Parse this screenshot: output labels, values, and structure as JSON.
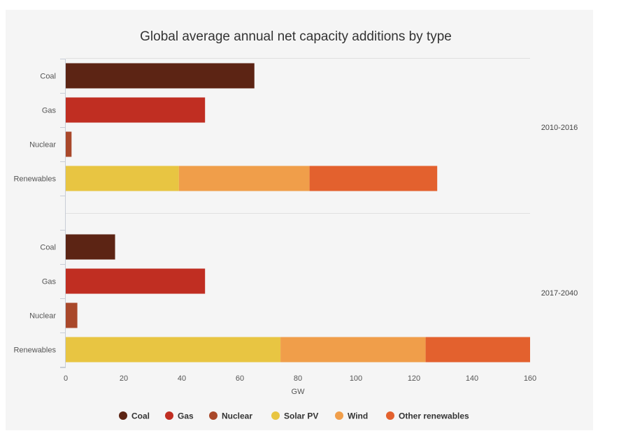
{
  "chart_data": {
    "type": "bar",
    "orientation": "horizontal",
    "stacked": true,
    "title": "Global average annual net capacity additions by type",
    "xlabel": "GW",
    "xlim": [
      0,
      160
    ],
    "xticks": [
      0,
      20,
      40,
      60,
      80,
      100,
      120,
      140,
      160
    ],
    "grid": false,
    "legend_position": "bottom",
    "series": [
      {
        "name": "Coal",
        "color": "#5c2414"
      },
      {
        "name": "Gas",
        "color": "#c02e22"
      },
      {
        "name": "Nuclear",
        "color": "#a9482a"
      },
      {
        "name": "Solar PV",
        "color": "#e8c542"
      },
      {
        "name": "Wind",
        "color": "#f09e4a"
      },
      {
        "name": "Other renewables",
        "color": "#e3612e"
      }
    ],
    "groups": [
      {
        "label": "2010-2016",
        "bars": [
          {
            "category": "Coal",
            "segments": [
              {
                "series": "Coal",
                "value": 65
              }
            ]
          },
          {
            "category": "Gas",
            "segments": [
              {
                "series": "Gas",
                "value": 48
              }
            ]
          },
          {
            "category": "Nuclear",
            "segments": [
              {
                "series": "Nuclear",
                "value": 2
              }
            ]
          },
          {
            "category": "Renewables",
            "segments": [
              {
                "series": "Solar PV",
                "value": 39
              },
              {
                "series": "Wind",
                "value": 45
              },
              {
                "series": "Other renewables",
                "value": 44
              }
            ]
          }
        ]
      },
      {
        "label": "2017-2040",
        "bars": [
          {
            "category": "Coal",
            "segments": [
              {
                "series": "Coal",
                "value": 17
              }
            ]
          },
          {
            "category": "Gas",
            "segments": [
              {
                "series": "Gas",
                "value": 48
              }
            ]
          },
          {
            "category": "Nuclear",
            "segments": [
              {
                "series": "Nuclear",
                "value": 4
              }
            ]
          },
          {
            "category": "Renewables",
            "segments": [
              {
                "series": "Solar PV",
                "value": 74
              },
              {
                "series": "Wind",
                "value": 50
              },
              {
                "series": "Other renewables",
                "value": 36
              }
            ]
          }
        ]
      }
    ]
  }
}
